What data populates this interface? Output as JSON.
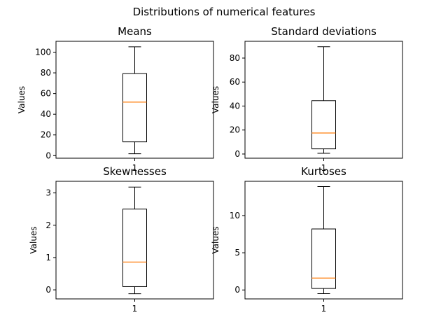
{
  "figure": {
    "suptitle": "Distributions of numerical features"
  },
  "colors": {
    "box": "#000000",
    "median": "#ff7f0e",
    "frame": "#000000"
  },
  "chart_data": [
    {
      "type": "box",
      "title": "Means",
      "ylabel": "Values",
      "xlabel": "",
      "categories": [
        "1"
      ],
      "ylim": [
        -2.5,
        110.5
      ],
      "yticks": [
        0,
        20,
        40,
        60,
        80,
        100
      ],
      "box": {
        "whisker_low": 1.8,
        "q1": 13.3,
        "median": 51.7,
        "q3": 79.3,
        "whisker_high": 105.2
      }
    },
    {
      "type": "box",
      "title": "Standard deviations",
      "ylabel": "Values",
      "xlabel": "",
      "categories": [
        "1"
      ],
      "ylim": [
        -3.5,
        94
      ],
      "yticks": [
        0,
        20,
        40,
        60,
        80
      ],
      "box": {
        "whisker_low": 0.6,
        "q1": 4.3,
        "median": 17.5,
        "q3": 44.5,
        "whisker_high": 89.5
      }
    },
    {
      "type": "box",
      "title": "Skewnesses",
      "ylabel": "Values",
      "xlabel": "",
      "categories": [
        "1"
      ],
      "ylim": [
        -0.28,
        3.36
      ],
      "yticks": [
        0,
        1,
        2,
        3
      ],
      "box": {
        "whisker_low": -0.12,
        "q1": 0.1,
        "median": 0.86,
        "q3": 2.5,
        "whisker_high": 3.18
      }
    },
    {
      "type": "box",
      "title": "Kurtoses",
      "ylabel": "Values",
      "xlabel": "",
      "categories": [
        "1"
      ],
      "ylim": [
        -1.2,
        14.6
      ],
      "yticks": [
        0,
        5,
        10
      ],
      "box": {
        "whisker_low": -0.5,
        "q1": 0.2,
        "median": 1.6,
        "q3": 8.2,
        "whisker_high": 13.9
      }
    }
  ]
}
